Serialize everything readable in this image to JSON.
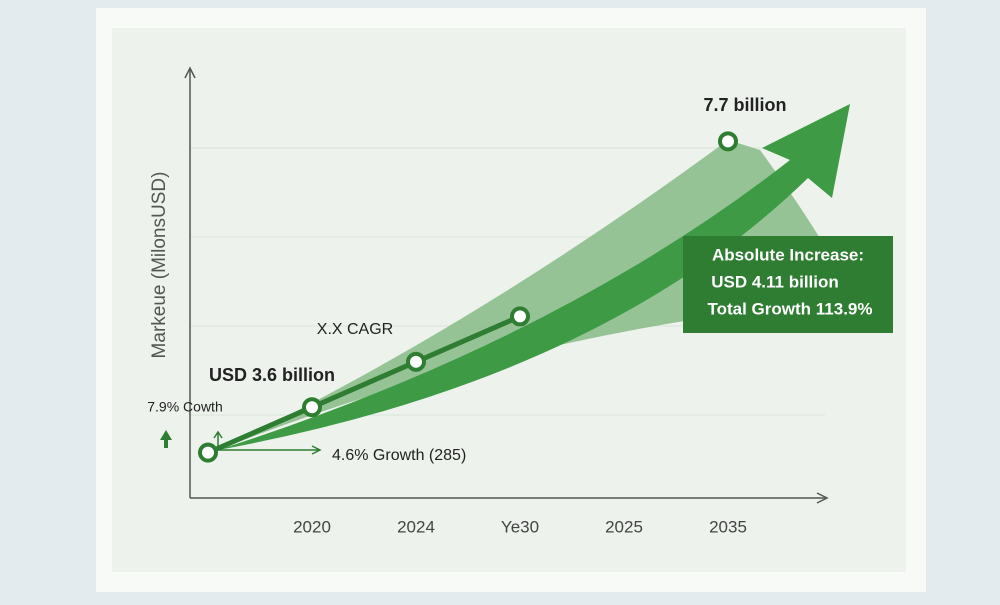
{
  "chart_data": {
    "type": "line",
    "y_axis_label": "Markeue (MilonsUSD)",
    "categories": [
      null,
      "2020",
      "2024",
      "Ye30",
      "2025",
      "2035"
    ],
    "series": [
      {
        "color": "#2e7d32",
        "values": [
          2.9,
          3.6,
          4.3,
          5.0,
          null,
          7.7
        ]
      }
    ],
    "ylim": [
      2.2,
      8.8
    ],
    "annotations": [
      "7.7 billion",
      "USD 3.6 billion",
      "X.X CAGR",
      "7.9% Cowth",
      "4.6% Growth (285)"
    ],
    "callout": [
      "Absolute Increase:",
      "USD 4.11 billion",
      "Total Growth 113.9%"
    ]
  }
}
